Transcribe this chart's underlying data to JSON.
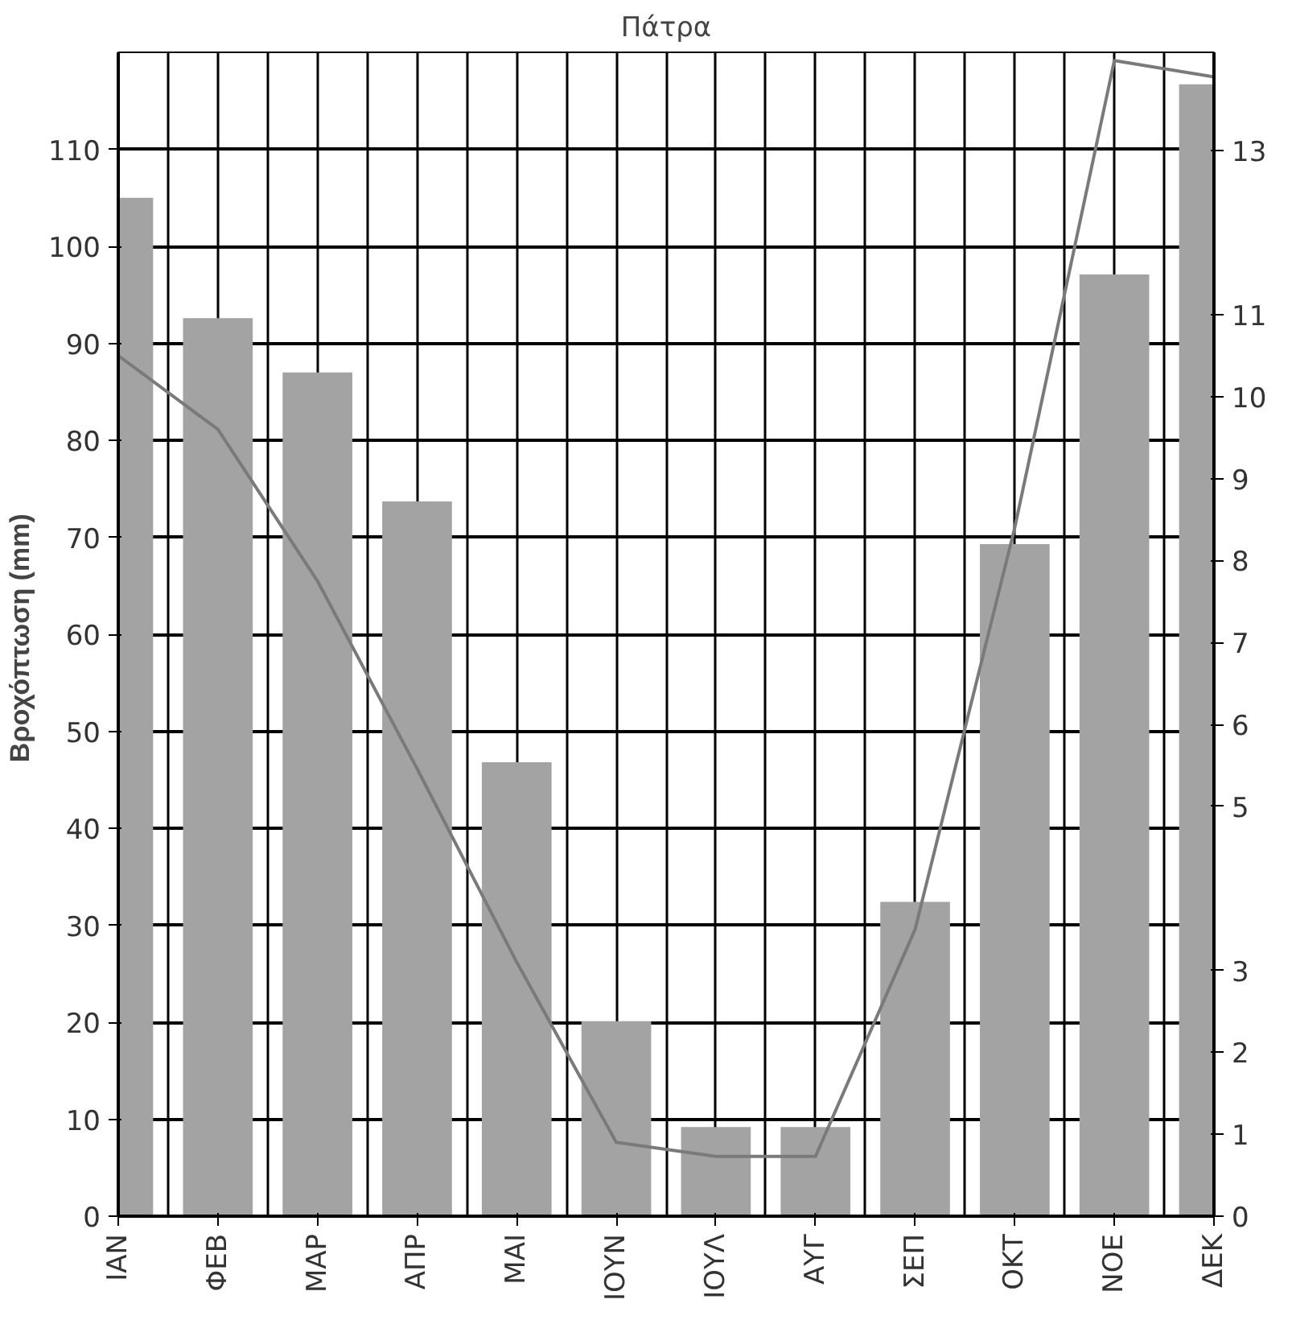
{
  "chart_data": {
    "type": "bar",
    "title": "Πάτρα",
    "ylabel": "Βροχόπτωση  (mm)",
    "categories": [
      "ΙΑΝ",
      "ΦΕΒ",
      "ΜΑΡ",
      "ΑΠΡ",
      "ΜΑΙ",
      "ΙΟΥΝ",
      "ΙΟΥΛ",
      "ΑΥΓ",
      "ΣΕΠ",
      "ΟΚΤ",
      "ΝΟΕ",
      "ΔΕΚ"
    ],
    "series": [
      {
        "color": "#a3a3a3",
        "values": [
          105,
          92.6,
          87,
          73.7,
          46.8,
          20.1,
          9.2,
          9.2,
          32.4,
          69.3,
          97.1,
          116.7
        ]
      },
      {
        "type": "line",
        "axis": "y2",
        "color": "#7a7a7a",
        "values": [
          10.5,
          9.6,
          7.75,
          5.46,
          3.1,
          0.9,
          0.73,
          0.73,
          3.5,
          8.4,
          14.1,
          13.9
        ]
      }
    ],
    "ylim": [
      0,
      120
    ],
    "yticks": [
      0,
      10,
      20,
      30,
      40,
      50,
      60,
      70,
      80,
      90,
      100,
      110
    ],
    "y2lim": [
      0,
      14.2
    ],
    "y2ticks": [
      0,
      1,
      2,
      3,
      5,
      6,
      7,
      8,
      9,
      10,
      11,
      13
    ],
    "grid": true,
    "marker": "none"
  }
}
